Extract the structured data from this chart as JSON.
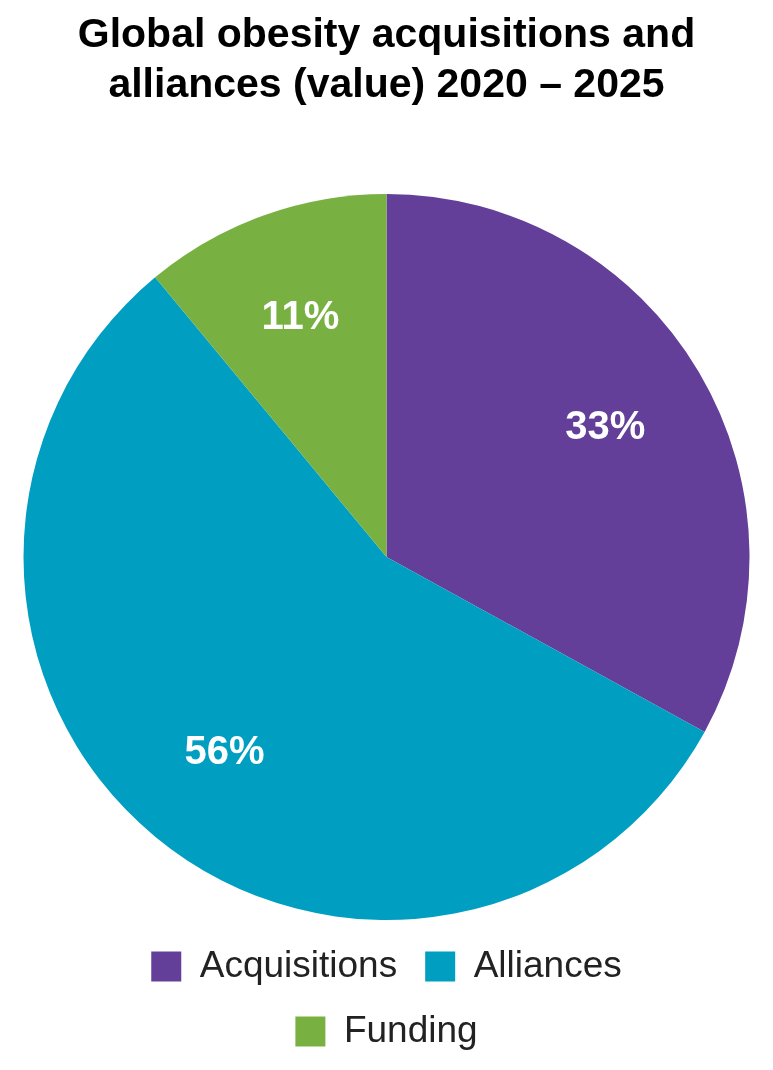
{
  "chart_data": {
    "type": "pie",
    "title": "Global obesity acquisitions and alliances (value) 2020 – 2025",
    "categories": [
      "Acquisitions",
      "Alliances",
      "Funding"
    ],
    "values": [
      33,
      56,
      11
    ],
    "colors": [
      "#633f99",
      "#009fc2",
      "#78b042"
    ],
    "value_labels": [
      "33%",
      "56%",
      "11%"
    ],
    "legend": "bottom"
  }
}
